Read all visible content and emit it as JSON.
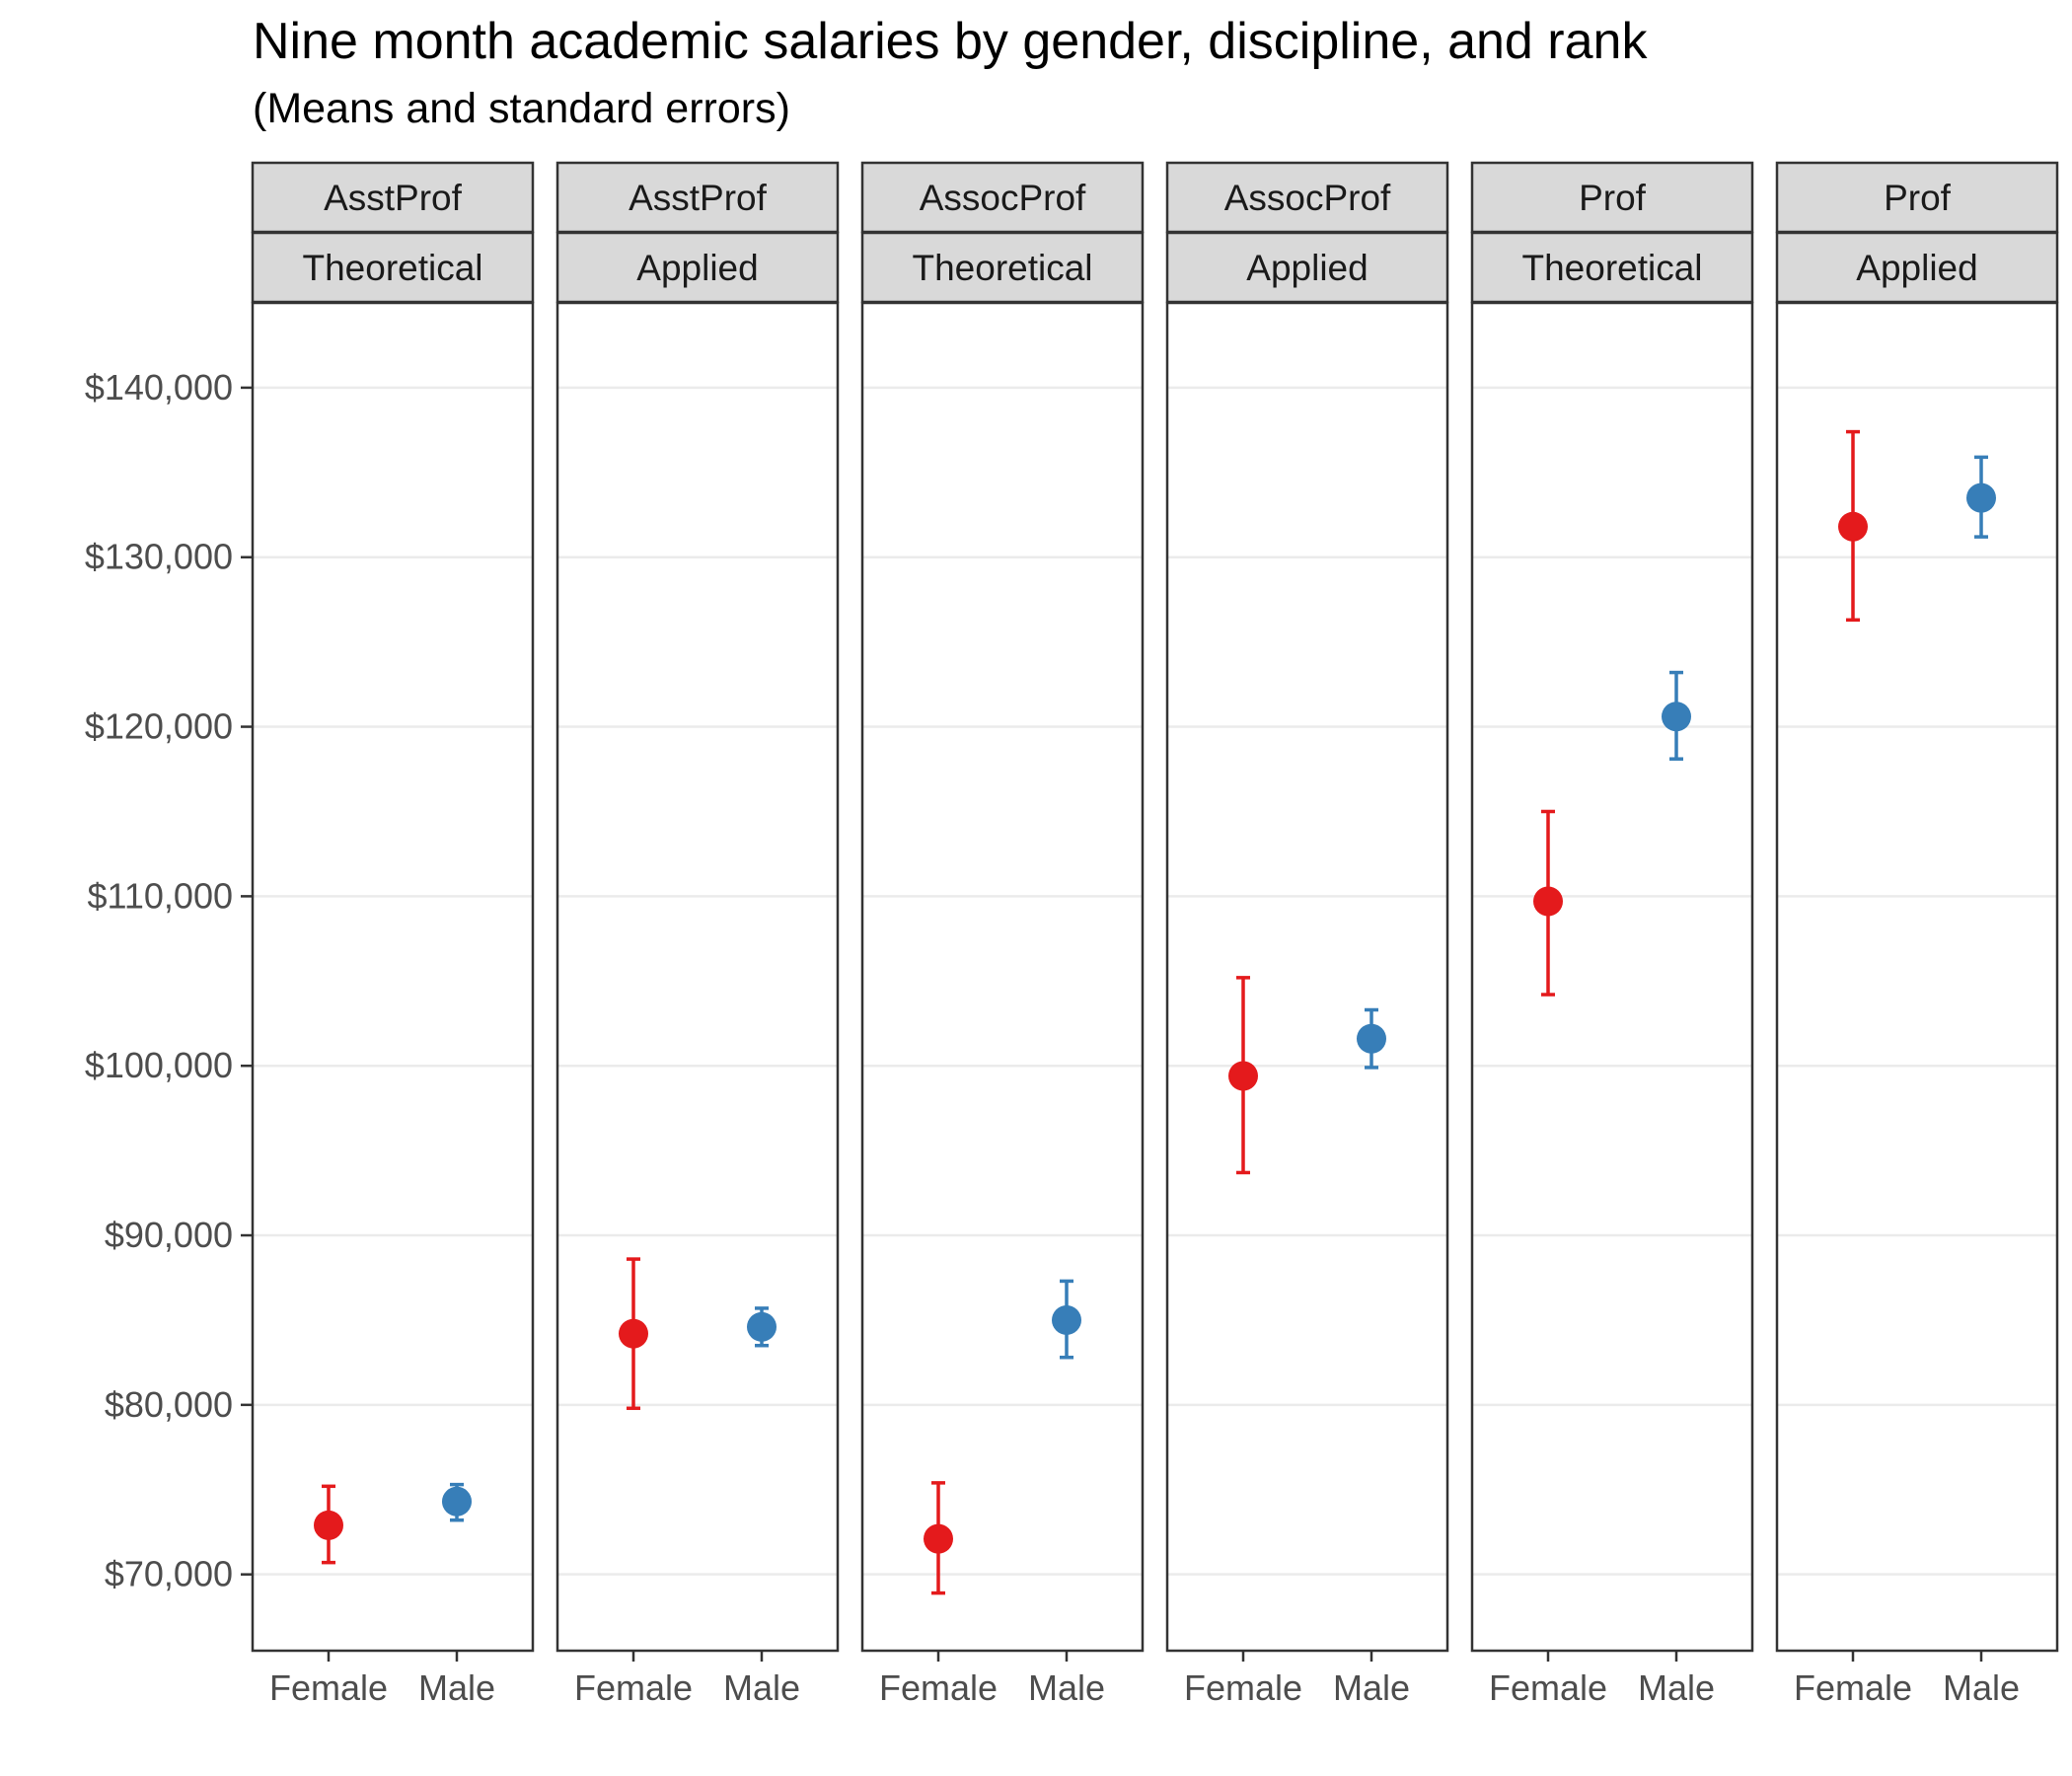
{
  "chart_data": {
    "type": "scatter",
    "title": "Nine month academic salaries by gender, discipline, and rank",
    "subtitle": "(Means and standard errors)",
    "xlabel": "",
    "ylabel": "",
    "categories": [
      "Female",
      "Male"
    ],
    "ylim": [
      65500,
      145000
    ],
    "y_ticks": [
      70000,
      80000,
      90000,
      100000,
      110000,
      120000,
      130000,
      140000
    ],
    "y_tick_labels": [
      "$70,000",
      "$80,000",
      "$90,000",
      "$100,000",
      "$110,000",
      "$120,000",
      "$130,000",
      "$140,000"
    ],
    "grid": true,
    "colors": {
      "Female": "#E41A1C",
      "Male": "#377EB8"
    },
    "panels": [
      {
        "rank": "AsstProf",
        "discipline": "Theoretical",
        "points": [
          {
            "gender": "Female",
            "mean": 72900,
            "lower": 70700,
            "upper": 75200
          },
          {
            "gender": "Male",
            "mean": 74300,
            "lower": 73200,
            "upper": 75300
          }
        ]
      },
      {
        "rank": "AsstProf",
        "discipline": "Applied",
        "points": [
          {
            "gender": "Female",
            "mean": 84200,
            "lower": 79800,
            "upper": 88600
          },
          {
            "gender": "Male",
            "mean": 84600,
            "lower": 83500,
            "upper": 85700
          }
        ]
      },
      {
        "rank": "AssocProf",
        "discipline": "Theoretical",
        "points": [
          {
            "gender": "Female",
            "mean": 72100,
            "lower": 68900,
            "upper": 75400
          },
          {
            "gender": "Male",
            "mean": 85000,
            "lower": 82800,
            "upper": 87300
          }
        ]
      },
      {
        "rank": "AssocProf",
        "discipline": "Applied",
        "points": [
          {
            "gender": "Female",
            "mean": 99400,
            "lower": 93700,
            "upper": 105200
          },
          {
            "gender": "Male",
            "mean": 101600,
            "lower": 99900,
            "upper": 103300
          }
        ]
      },
      {
        "rank": "Prof",
        "discipline": "Theoretical",
        "points": [
          {
            "gender": "Female",
            "mean": 109700,
            "lower": 104200,
            "upper": 115000
          },
          {
            "gender": "Male",
            "mean": 120600,
            "lower": 118100,
            "upper": 123200
          }
        ]
      },
      {
        "rank": "Prof",
        "discipline": "Applied",
        "points": [
          {
            "gender": "Female",
            "mean": 131800,
            "lower": 126300,
            "upper": 137400
          },
          {
            "gender": "Male",
            "mean": 133500,
            "lower": 131200,
            "upper": 135900
          }
        ]
      }
    ]
  }
}
